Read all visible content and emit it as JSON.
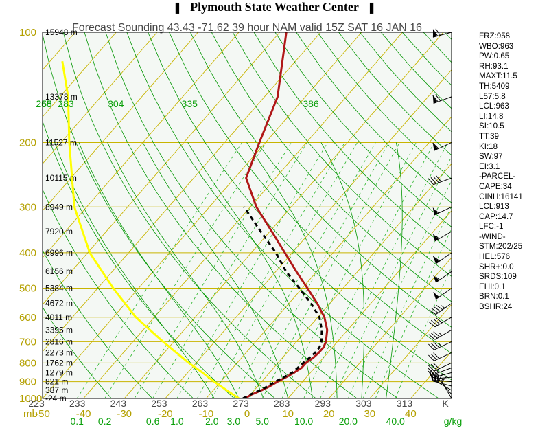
{
  "header": {
    "title": "Plymouth State Weather Center"
  },
  "chart_data": {
    "type": "skew-t",
    "title": "Forecast Sounding 43.43 -71.62 39 hour NAM valid 15Z SAT 16 JAN 16",
    "pressure_unit": "mb",
    "temperature_unit": "C",
    "mixing_ratio_unit": "g/kg",
    "theta_unit": "K",
    "pressure_levels": [
      100,
      200,
      300,
      400,
      500,
      600,
      700,
      800,
      900,
      1000
    ],
    "height_labels": [
      {
        "p": 100,
        "label": "15948 m"
      },
      {
        "p": 150,
        "label": "13378 m"
      },
      {
        "p": 200,
        "label": "11527 m"
      },
      {
        "p": 250,
        "label": "10115 m"
      },
      {
        "p": 300,
        "label": "8949 m"
      },
      {
        "p": 350,
        "label": "7920 m"
      },
      {
        "p": 400,
        "label": "6996 m"
      },
      {
        "p": 450,
        "label": "6156 m"
      },
      {
        "p": 500,
        "label": "5384 m"
      },
      {
        "p": 550,
        "label": "4672 m"
      },
      {
        "p": 600,
        "label": "4011 m"
      },
      {
        "p": 650,
        "label": "3395 m"
      },
      {
        "p": 700,
        "label": "2816 m"
      },
      {
        "p": 750,
        "label": "2273 m"
      },
      {
        "p": 800,
        "label": "1762 m"
      },
      {
        "p": 850,
        "label": "1279 m"
      },
      {
        "p": 900,
        "label": "821 m"
      },
      {
        "p": 950,
        "label": "387 m"
      },
      {
        "p": 1000,
        "label": "-24 m"
      }
    ],
    "temperature_ticks": [
      -50,
      -40,
      -30,
      -20,
      -10,
      0,
      10,
      20,
      30,
      40
    ],
    "temperature_axis_label": "mb",
    "kelvin_ticks": [
      {
        "t": 223,
        "label": "223"
      },
      {
        "t": 233,
        "label": "233"
      },
      {
        "t": 243,
        "label": "243"
      },
      {
        "t": 253,
        "label": "253"
      },
      {
        "t": 263,
        "label": "263"
      },
      {
        "t": 273,
        "label": "273"
      },
      {
        "t": 283,
        "label": "283"
      },
      {
        "t": 293,
        "label": "293"
      },
      {
        "t": 303,
        "label": "303"
      },
      {
        "t": 313,
        "label": "313"
      },
      {
        "t": 323,
        "label": "K"
      }
    ],
    "mixing_ratio_ticks": [
      {
        "w": 0.1,
        "label": "0.1"
      },
      {
        "w": 0.2,
        "label": "0.2"
      },
      {
        "w": 0.6,
        "label": "0.6"
      },
      {
        "w": 1.0,
        "label": "1.0"
      },
      {
        "w": 2.0,
        "label": "2.0"
      },
      {
        "w": 3.0,
        "label": "3.0"
      },
      {
        "w": 5.0,
        "label": "5.0"
      },
      {
        "w": 10.0,
        "label": "10.0"
      },
      {
        "w": 20.0,
        "label": "20.0"
      },
      {
        "w": 40.0,
        "label": "40.0"
      }
    ],
    "mixing_ratio_unit_label": "g/kg",
    "theta_labels": [
      {
        "theta": 255,
        "label": "255"
      },
      {
        "theta": 268,
        "label": "268"
      },
      {
        "theta": 283,
        "label": "283"
      },
      {
        "theta": 304,
        "label": "304"
      },
      {
        "theta": 335,
        "label": "335"
      },
      {
        "theta": 386,
        "label": "386"
      }
    ],
    "skew_deg_per_decade": 78,
    "xlim": [
      -50,
      50
    ],
    "ylim": [
      1000,
      100
    ],
    "series": [
      {
        "role": "temperature",
        "color": "#b01818",
        "points": [
          [
            1000,
            -0.5
          ],
          [
            975,
            0.3
          ],
          [
            950,
            1.8
          ],
          [
            925,
            3.0
          ],
          [
            900,
            3.9
          ],
          [
            875,
            5.0
          ],
          [
            850,
            6.0
          ],
          [
            825,
            6.8
          ],
          [
            800,
            6.8
          ],
          [
            775,
            7.5
          ],
          [
            750,
            7.8
          ],
          [
            725,
            7.8
          ],
          [
            700,
            7.2
          ],
          [
            650,
            5.0
          ],
          [
            600,
            1.6
          ],
          [
            550,
            -3.1
          ],
          [
            500,
            -8.7
          ],
          [
            450,
            -15.0
          ],
          [
            400,
            -21.8
          ],
          [
            350,
            -29.5
          ],
          [
            300,
            -38.5
          ],
          [
            250,
            -47.2
          ],
          [
            200,
            -51.5
          ],
          [
            150,
            -56.8
          ],
          [
            100,
            -68.4
          ]
        ]
      },
      {
        "role": "dewpoint",
        "color": "#000000",
        "dashed": true,
        "points": [
          [
            1000,
            -1.0
          ],
          [
            975,
            0.0
          ],
          [
            950,
            1.5
          ],
          [
            925,
            2.5
          ],
          [
            900,
            3.3
          ],
          [
            875,
            4.5
          ],
          [
            850,
            5.5
          ],
          [
            825,
            5.9
          ],
          [
            800,
            6.2
          ],
          [
            775,
            6.6
          ],
          [
            750,
            6.9
          ],
          [
            725,
            6.8
          ],
          [
            700,
            6.1
          ],
          [
            650,
            3.7
          ],
          [
            600,
            0.4
          ],
          [
            550,
            -4.6
          ],
          [
            500,
            -10.7
          ],
          [
            450,
            -17.5
          ],
          [
            400,
            -24.0
          ],
          [
            350,
            -32.2
          ],
          [
            300,
            -41.5
          ]
        ]
      },
      {
        "role": "parcel-dewpoint-trace",
        "color": "#ffff00",
        "points": [
          [
            1000,
            -2.0
          ],
          [
            950,
            -6.7
          ],
          [
            900,
            -11.6
          ],
          [
            850,
            -16.4
          ],
          [
            800,
            -21.8
          ],
          [
            700,
            -32.6
          ],
          [
            600,
            -44.5
          ],
          [
            500,
            -56.2
          ],
          [
            400,
            -69.5
          ],
          [
            300,
            -83.0
          ],
          [
            200,
            -98.0
          ],
          [
            150,
            -108.0
          ],
          [
            120,
            -117.0
          ]
        ]
      }
    ],
    "wind_barbs": [
      {
        "p": 1000,
        "dir": 330,
        "spd": 10
      },
      {
        "p": 975,
        "dir": 320,
        "spd": 15
      },
      {
        "p": 950,
        "dir": 300,
        "spd": 20
      },
      {
        "p": 925,
        "dir": 285,
        "spd": 25
      },
      {
        "p": 900,
        "dir": 275,
        "spd": 25
      },
      {
        "p": 875,
        "dir": 265,
        "spd": 25
      },
      {
        "p": 850,
        "dir": 255,
        "spd": 25
      },
      {
        "p": 825,
        "dir": 250,
        "spd": 25
      },
      {
        "p": 800,
        "dir": 245,
        "spd": 30
      },
      {
        "p": 750,
        "dir": 245,
        "spd": 30
      },
      {
        "p": 700,
        "dir": 245,
        "spd": 35
      },
      {
        "p": 650,
        "dir": 240,
        "spd": 35
      },
      {
        "p": 600,
        "dir": 240,
        "spd": 40
      },
      {
        "p": 550,
        "dir": 235,
        "spd": 45
      },
      {
        "p": 500,
        "dir": 235,
        "spd": 50
      },
      {
        "p": 450,
        "dir": 235,
        "spd": 55
      },
      {
        "p": 400,
        "dir": 235,
        "spd": 60
      },
      {
        "p": 350,
        "dir": 240,
        "spd": 55
      },
      {
        "p": 300,
        "dir": 245,
        "spd": 55
      },
      {
        "p": 250,
        "dir": 250,
        "spd": 40
      },
      {
        "p": 200,
        "dir": 245,
        "spd": 60
      },
      {
        "p": 150,
        "dir": 250,
        "spd": 70
      },
      {
        "p": 100,
        "dir": 255,
        "spd": 70
      }
    ],
    "indices": [
      "FRZ:958",
      "WBO:963",
      "PW:0.65",
      "RH:93.1",
      "MAXT:11.5",
      "TH:5409",
      "L57:5.8",
      "LCL:963",
      "LI:14.8",
      "SI:10.5",
      "TT:39",
      "KI:18",
      "SW:97",
      "EI:3.1",
      "-PARCEL-",
      "CAPE:34",
      "CINH:16141",
      "LCL:913",
      "CAP:14.7",
      "LFC:-1",
      "-WIND-",
      "STM:202/25",
      "HEL:576",
      "SHR+:0.0",
      "SRDS:109",
      "EHI:0.1",
      "BRN:0.1",
      "BSHR:24"
    ],
    "colors": {
      "background": "#f4f8f4",
      "isobar": "#c8b400",
      "isotherm": "#c8b400",
      "dry_adiabat": "#009600",
      "moist_adiabat": "#009600",
      "mixing_ratio": "#28b428",
      "label_green": "#0aa00a",
      "label_olive": "#b4a000",
      "label_dark": "#464646"
    }
  }
}
